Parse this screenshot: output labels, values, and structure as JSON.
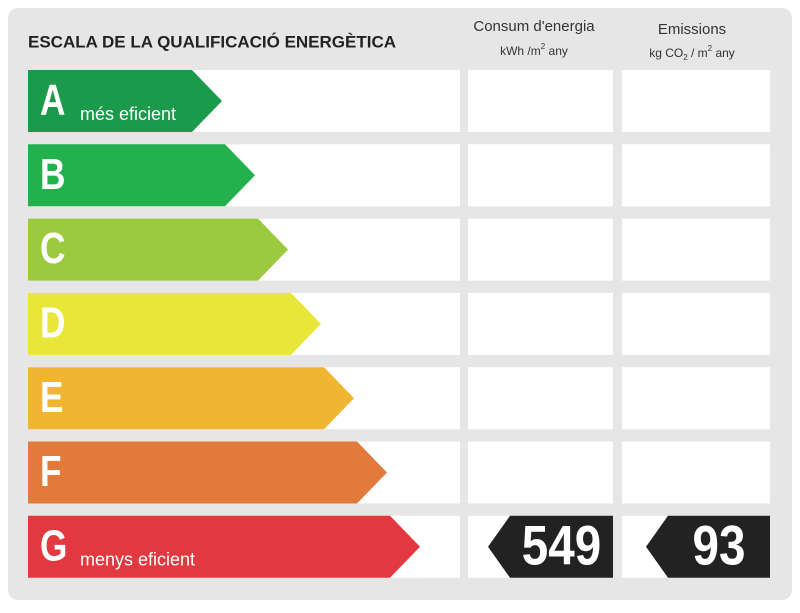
{
  "title": "ESCALA DE LA QUALIFICACIÓ ENERGÈTICA",
  "columns": {
    "energy": {
      "title": "Consum d'energia",
      "unit": [
        "kWh /m",
        "2",
        " any"
      ]
    },
    "emissions": {
      "title": "Emissions",
      "unit": [
        "kg CO",
        "2",
        " / m",
        "2",
        " any"
      ]
    }
  },
  "rows": [
    {
      "letter": "A",
      "label": "més eficient",
      "color": "#1b9a4b"
    },
    {
      "letter": "B",
      "color": "#22b14c"
    },
    {
      "letter": "C",
      "color": "#9bca3e"
    },
    {
      "letter": "D",
      "color": "#e9e63a"
    },
    {
      "letter": "E",
      "color": "#f0b531"
    },
    {
      "letter": "F",
      "color": "#e27a3b"
    },
    {
      "letter": "G",
      "label": "menys eficient",
      "color": "#e2383f",
      "energy": 549,
      "emissions": 93
    }
  ]
}
